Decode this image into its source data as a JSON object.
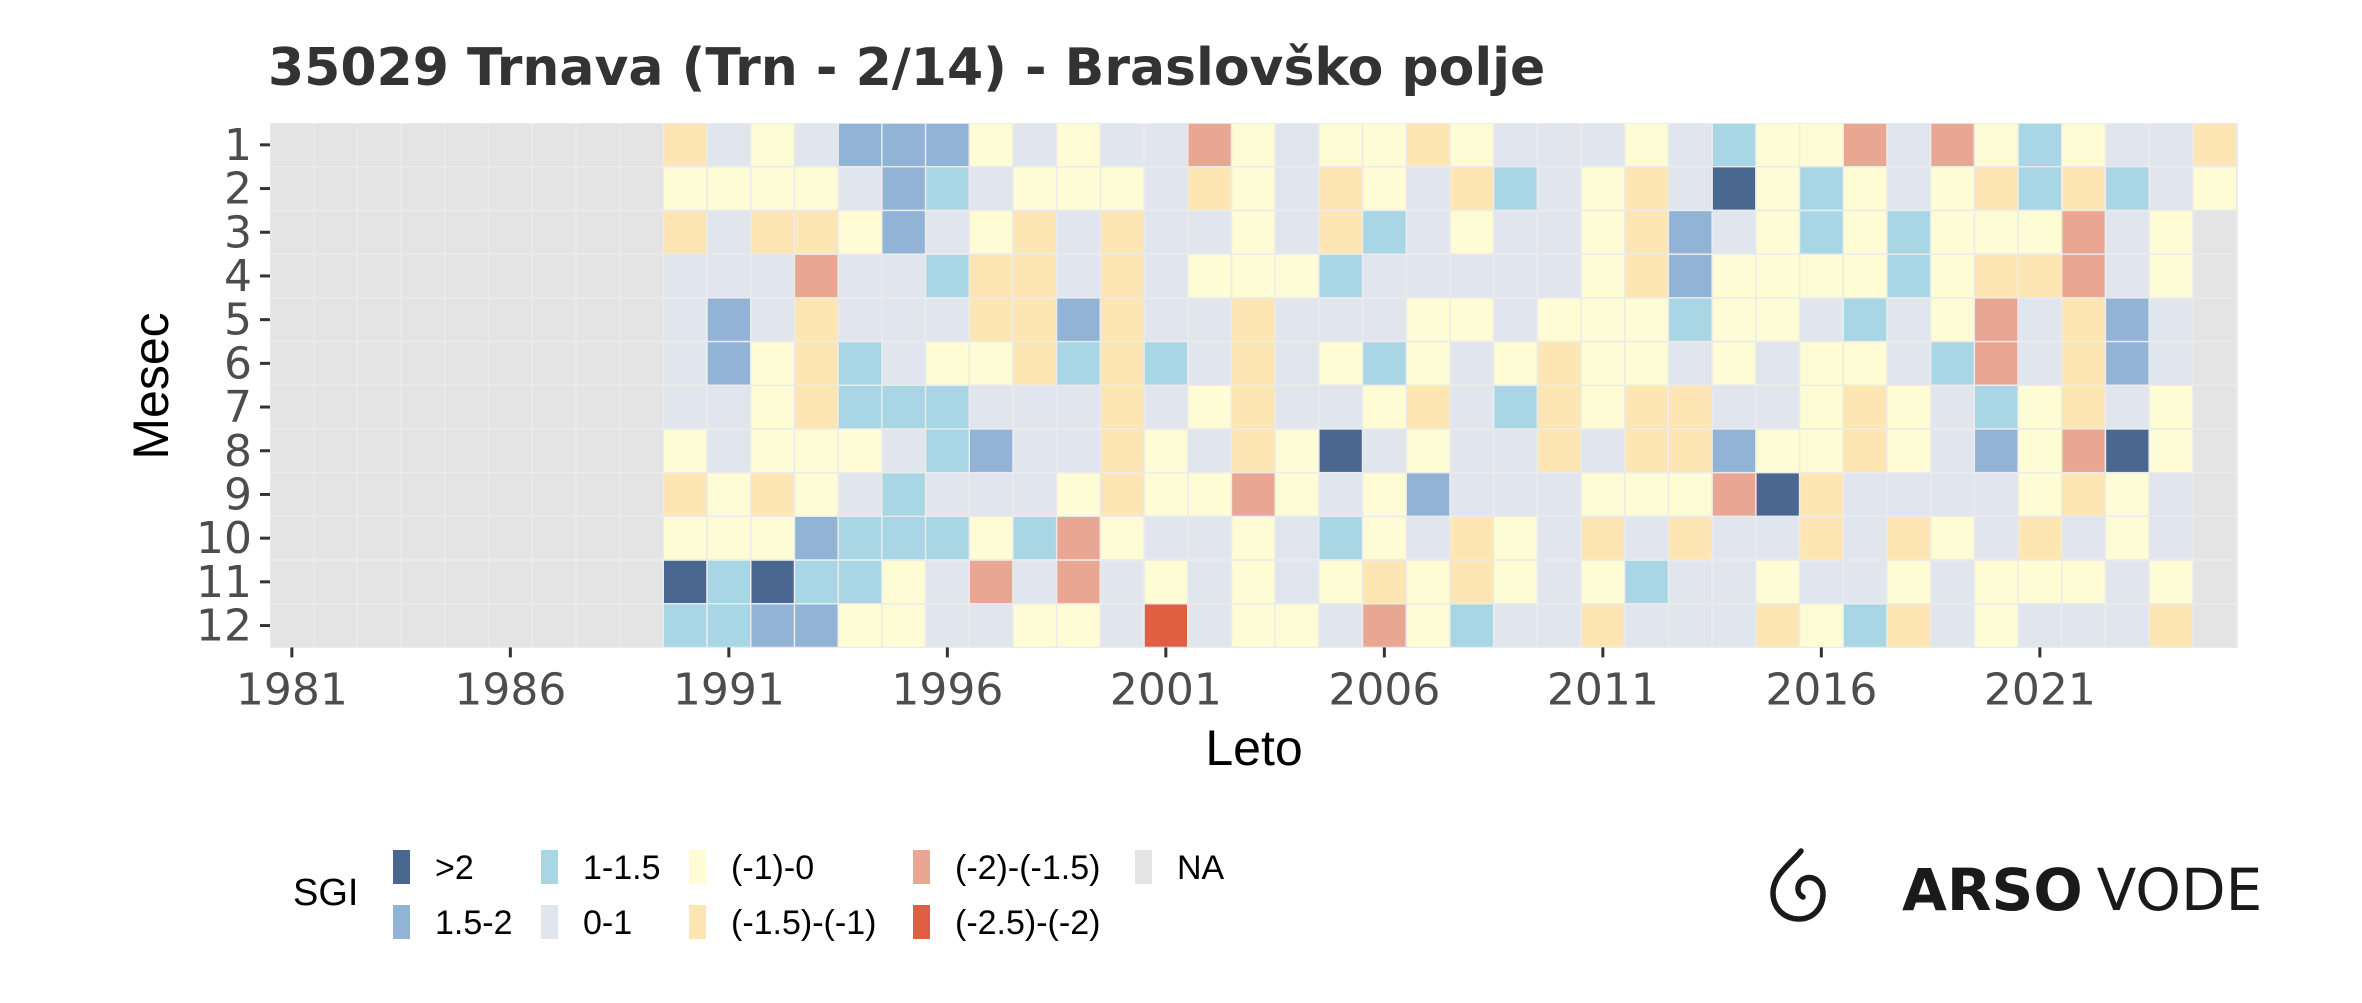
{
  "chart_data": {
    "type": "heatmap",
    "title": "35029 Trnava (Trn - 2/14) - Braslovško polje",
    "xlabel": "Leto",
    "ylabel": "Mesec",
    "x_tick_labels": [
      "1981",
      "1986",
      "1991",
      "1996",
      "2001",
      "2006",
      "2011",
      "2016",
      "2021"
    ],
    "y_tick_labels": [
      "1",
      "2",
      "3",
      "4",
      "5",
      "6",
      "7",
      "8",
      "9",
      "10",
      "11",
      "12"
    ],
    "year_range": [
      1981,
      2025
    ],
    "month_range": [
      1,
      12
    ],
    "legend": {
      "title": "SGI",
      "position": "bottom",
      "items": [
        {
          "code": "A",
          "label": ">2",
          "color": "#4a6790"
        },
        {
          "code": "B",
          "label": "1.5-2",
          "color": "#90b3d6"
        },
        {
          "code": "C",
          "label": "1-1.5",
          "color": "#a9d6e5"
        },
        {
          "code": "D",
          "label": "0-1",
          "color": "#e1e6ee"
        },
        {
          "code": "E",
          "label": "(-1)-0",
          "color": "#fefcd4"
        },
        {
          "code": "F",
          "label": "(-1.5)-(-1)",
          "color": "#fde6b3"
        },
        {
          "code": "G",
          "label": "(-2)-(-1.5)",
          "color": "#e8a693"
        },
        {
          "code": "H",
          "label": "(-2.5)-(-2)",
          "color": "#e05f42"
        },
        {
          "code": "N",
          "label": "NA",
          "color": "#e4e4e4"
        }
      ]
    },
    "data_start_year": 1990,
    "values": [
      "FDEDBBBEDEDDGEDEEFEDDDEDCEEGDGECEDDF",
      "EEEEDBCDEEEDFEDFEDFCDEFDAECEDEFCFCDE",
      "FDFFEBDEFDFDDEDFCDEDDEFBDECECEEEGDEN",
      "DDDGDDCFFDFDEEECDDDDDEFBEEEECEFFGDEN",
      "DBDFDDDFFBFDDFDDDEEDEEECEEDCDEGDFBDN",
      "DBEFCDEEFCFCDFDECEDEFEEDEDEEDCGDFBDN",
      "DDEFCCCDDDFDEFDDEFDCFEFFDDEFEDCEFDEN",
      "EDEEEDCBDDFEDFEADEDDFDFFBEEFEDBEGAEN",
      "FEFEDCDDDEFEEGEDEBDDDEEEGAFDDDDEFEDN",
      "EEEBCCCECGEDDEDCEDFEDFDFDDFDFEDFDEDN",
      "ACACCEDGDGDEDEDEFEFEDECDDEDDEDEEEDEN",
      "CCBBEEDDEEDHDEEDGECDDFDDDFECFDEDDDFN"
    ]
  },
  "branding": {
    "logo_strong": "ARSO",
    "logo_light": "VODE",
    "logo_icon": "drop-swirl-icon"
  }
}
